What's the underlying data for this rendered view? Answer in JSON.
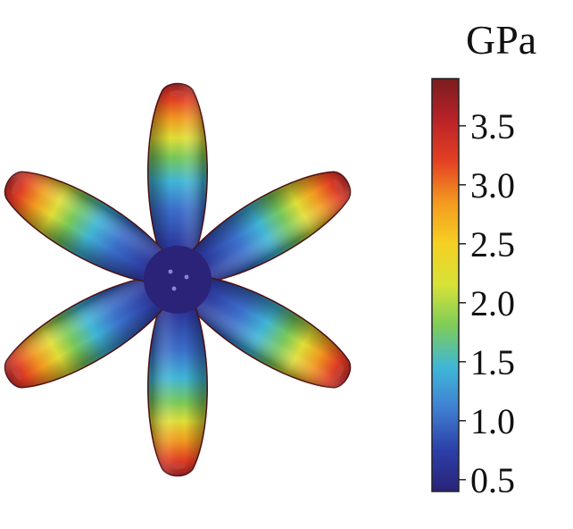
{
  "colorbar": {
    "unit": "GPa",
    "ticks": [
      "3.5",
      "3.0",
      "2.5",
      "2.0",
      "1.5",
      "1.0",
      "0.5"
    ],
    "range": [
      0.4,
      3.9
    ],
    "colormap": [
      "#2a2378",
      "#2c3fa8",
      "#3f7fd1",
      "#3fb6d8",
      "#7ccc5a",
      "#d6e238",
      "#f6d023",
      "#f39a1f",
      "#e44123",
      "#b92227",
      "#7a1d1f"
    ]
  },
  "surface": {
    "lobes": 6,
    "lobe_angles_deg": [
      0,
      60,
      120,
      180,
      240,
      300
    ]
  }
}
